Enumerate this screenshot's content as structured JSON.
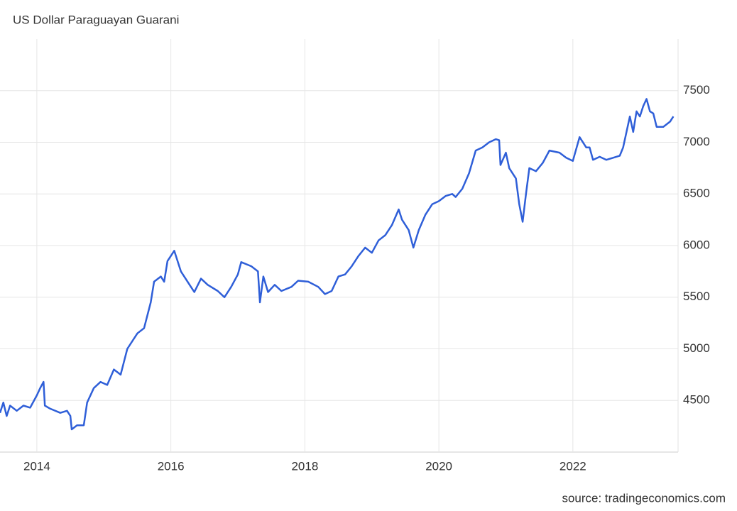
{
  "chart_data": {
    "type": "line",
    "title": "US Dollar Paraguayan Guarani",
    "source": "source: tradingeconomics.com",
    "xlim": [
      2013.45,
      2023.57
    ],
    "xticks": [
      2014,
      2016,
      2018,
      2020,
      2022
    ],
    "ylim": [
      4000,
      8000
    ],
    "yticks": [
      4500,
      5000,
      5500,
      6000,
      6500,
      7000,
      7500
    ],
    "grid": true,
    "series": [
      {
        "color": "#2f5fd8",
        "x": [
          2013.45,
          2013.5,
          2013.55,
          2013.6,
          2013.7,
          2013.8,
          2013.9,
          2014.0,
          2014.05,
          2014.1,
          2014.12,
          2014.2,
          2014.35,
          2014.45,
          2014.5,
          2014.52,
          2014.6,
          2014.7,
          2014.75,
          2014.85,
          2014.95,
          2015.05,
          2015.15,
          2015.25,
          2015.35,
          2015.5,
          2015.6,
          2015.7,
          2015.75,
          2015.85,
          2015.9,
          2015.95,
          2016.05,
          2016.15,
          2016.3,
          2016.35,
          2016.45,
          2016.55,
          2016.7,
          2016.8,
          2016.9,
          2017.0,
          2017.05,
          2017.2,
          2017.3,
          2017.33,
          2017.38,
          2017.45,
          2017.55,
          2017.65,
          2017.8,
          2017.9,
          2018.05,
          2018.2,
          2018.3,
          2018.4,
          2018.5,
          2018.6,
          2018.7,
          2018.8,
          2018.9,
          2019.0,
          2019.1,
          2019.2,
          2019.3,
          2019.4,
          2019.45,
          2019.55,
          2019.62,
          2019.7,
          2019.8,
          2019.9,
          2020.0,
          2020.1,
          2020.2,
          2020.25,
          2020.35,
          2020.45,
          2020.55,
          2020.65,
          2020.75,
          2020.85,
          2020.9,
          2020.92,
          2021.0,
          2021.05,
          2021.15,
          2021.2,
          2021.25,
          2021.3,
          2021.35,
          2021.45,
          2021.55,
          2021.65,
          2021.8,
          2021.9,
          2022.0,
          2022.1,
          2022.2,
          2022.25,
          2022.3,
          2022.4,
          2022.5,
          2022.6,
          2022.7,
          2022.75,
          2022.85,
          2022.9,
          2022.95,
          2023.0,
          2023.05,
          2023.1,
          2023.15,
          2023.2,
          2023.25,
          2023.35,
          2023.45,
          2023.5
        ],
        "values": [
          4380,
          4480,
          4350,
          4450,
          4400,
          4450,
          4430,
          4550,
          4620,
          4680,
          4450,
          4420,
          4380,
          4400,
          4350,
          4220,
          4260,
          4260,
          4480,
          4620,
          4680,
          4650,
          4800,
          4750,
          5000,
          5150,
          5200,
          5450,
          5650,
          5700,
          5650,
          5850,
          5950,
          5750,
          5600,
          5550,
          5680,
          5620,
          5560,
          5500,
          5600,
          5720,
          5840,
          5800,
          5750,
          5450,
          5700,
          5550,
          5620,
          5560,
          5600,
          5660,
          5650,
          5600,
          5530,
          5560,
          5700,
          5720,
          5800,
          5900,
          5980,
          5930,
          6050,
          6100,
          6200,
          6350,
          6250,
          6150,
          5980,
          6150,
          6300,
          6400,
          6430,
          6480,
          6500,
          6470,
          6550,
          6700,
          6920,
          6950,
          7000,
          7030,
          7020,
          6780,
          6900,
          6750,
          6650,
          6400,
          6230,
          6500,
          6750,
          6720,
          6800,
          6920,
          6900,
          6850,
          6820,
          7050,
          6950,
          6950,
          6830,
          6860,
          6830,
          6850,
          6870,
          6950,
          7250,
          7100,
          7300,
          7250,
          7350,
          7420,
          7300,
          7280,
          7150,
          7150,
          7200,
          7250
        ]
      }
    ]
  }
}
